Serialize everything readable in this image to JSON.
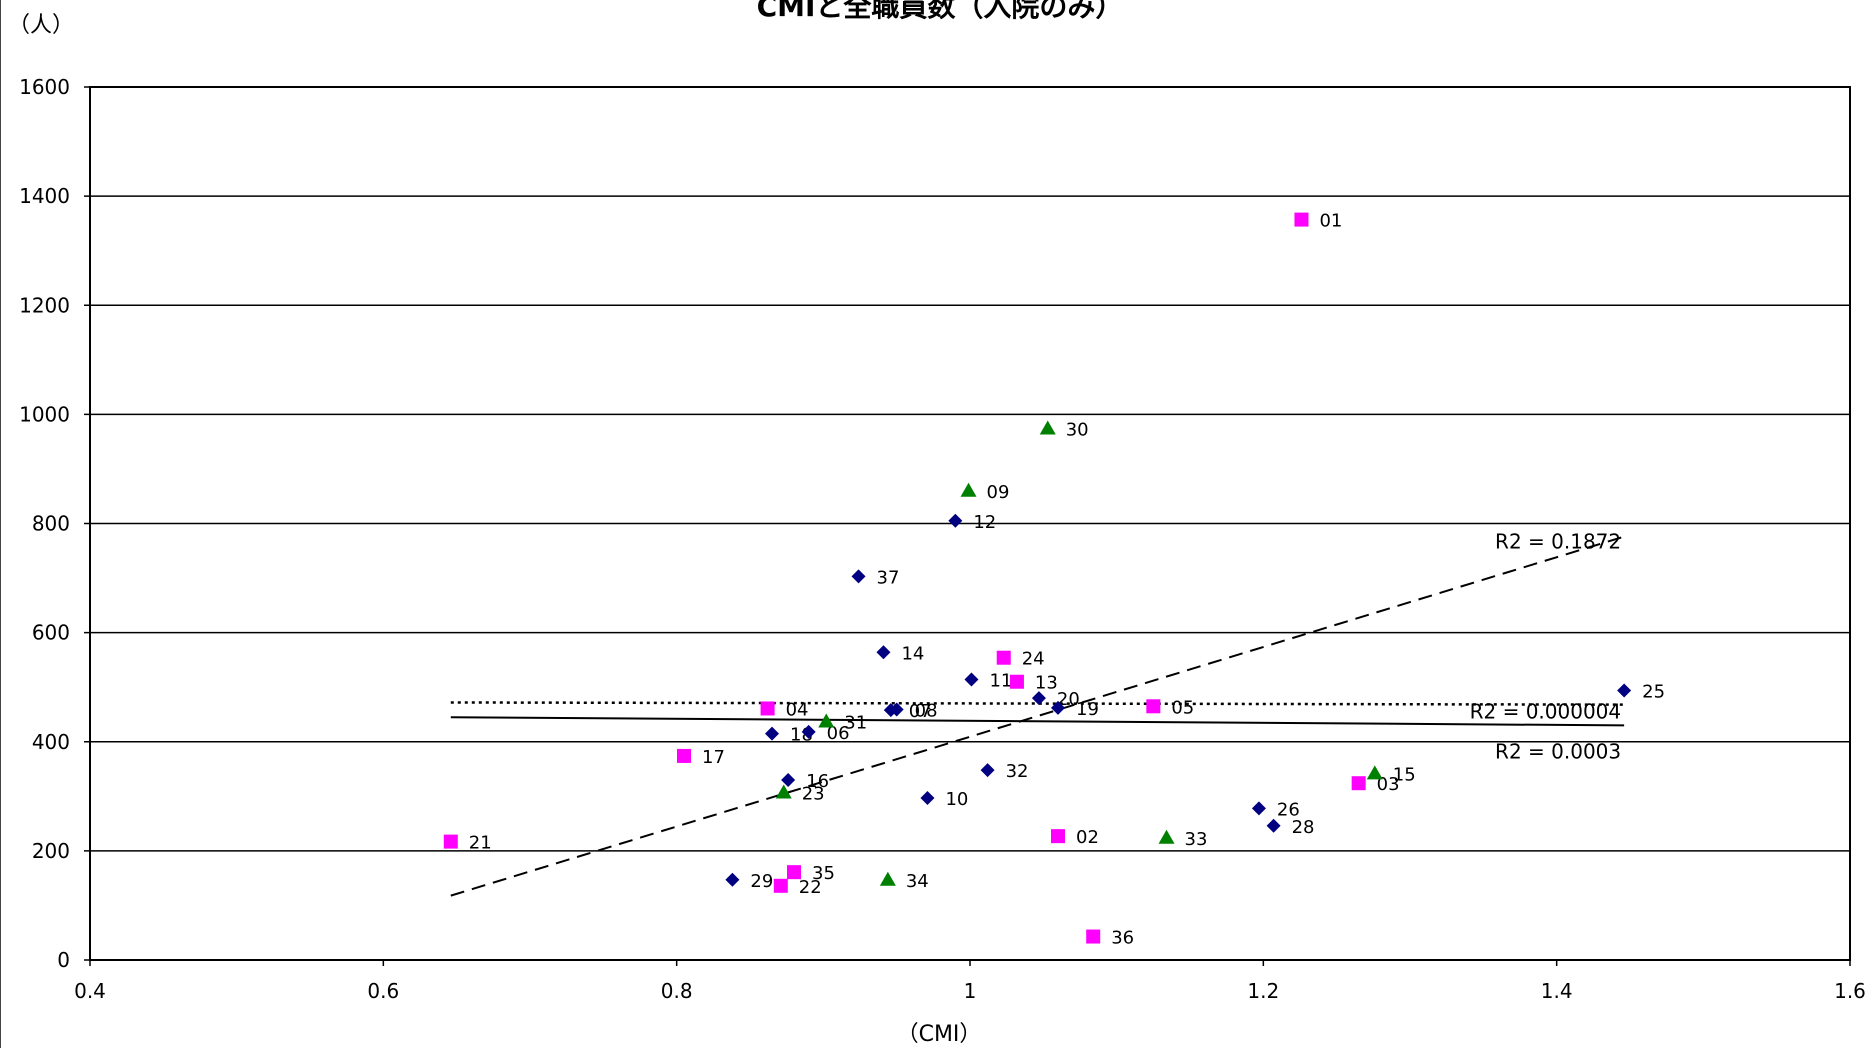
{
  "chart_data": {
    "type": "scatter",
    "title": "CMIと全職員数（入院のみ）",
    "xlabel": "（CMI）",
    "ylabel": "（人）",
    "xlim": [
      0.4,
      1.6
    ],
    "ylim": [
      0,
      1600
    ],
    "xticks": [
      0.4,
      0.6,
      0.8,
      1,
      1.2,
      1.4,
      1.6
    ],
    "xtick_labels": [
      "0.4",
      "0.6",
      "0.8",
      "1",
      "1.2",
      "1.4",
      "1.6"
    ],
    "yticks": [
      0,
      200,
      400,
      600,
      800,
      1000,
      1200,
      1400,
      1600
    ],
    "ytick_labels": [
      "0",
      "200",
      "400",
      "600",
      "800",
      "1000",
      "1200",
      "1400",
      "1600"
    ],
    "grid": "horizontal",
    "series": [
      {
        "marker": "diamond",
        "color": "#000080",
        "points": [
          {
            "x": 0.99,
            "y": 805,
            "label": "12"
          },
          {
            "x": 0.924,
            "y": 703,
            "label": "37"
          },
          {
            "x": 0.941,
            "y": 564,
            "label": "14"
          },
          {
            "x": 1.001,
            "y": 514,
            "label": "11"
          },
          {
            "x": 1.047,
            "y": 480,
            "label": "20"
          },
          {
            "x": 1.06,
            "y": 462,
            "label": "19"
          },
          {
            "x": 0.946,
            "y": 458,
            "label": "07"
          },
          {
            "x": 0.95,
            "y": 459,
            "label": "08"
          },
          {
            "x": 0.865,
            "y": 415,
            "label": "18"
          },
          {
            "x": 0.89,
            "y": 418,
            "label": "06"
          },
          {
            "x": 1.446,
            "y": 494,
            "label": "25"
          },
          {
            "x": 0.876,
            "y": 330,
            "label": "16"
          },
          {
            "x": 1.012,
            "y": 348,
            "label": "32"
          },
          {
            "x": 0.971,
            "y": 297,
            "label": "10"
          },
          {
            "x": 1.197,
            "y": 278,
            "label": "26"
          },
          {
            "x": 1.207,
            "y": 246,
            "label": "28"
          },
          {
            "x": 0.838,
            "y": 147,
            "label": "29"
          }
        ],
        "trendline": {
          "x": [
            0.646,
            1.446
          ],
          "y": [
            445,
            430
          ],
          "style": "solid",
          "r2_label": "R2 = 0.0003"
        }
      },
      {
        "marker": "square",
        "color": "#FF00FF",
        "points": [
          {
            "x": 1.226,
            "y": 1357,
            "label": "01"
          },
          {
            "x": 1.023,
            "y": 554,
            "label": "24"
          },
          {
            "x": 1.032,
            "y": 510,
            "label": "13"
          },
          {
            "x": 0.862,
            "y": 461,
            "label": "04"
          },
          {
            "x": 1.125,
            "y": 465,
            "label": "05"
          },
          {
            "x": 0.805,
            "y": 374,
            "label": "17"
          },
          {
            "x": 1.265,
            "y": 324,
            "label": "03"
          },
          {
            "x": 1.06,
            "y": 227,
            "label": "02"
          },
          {
            "x": 0.646,
            "y": 217,
            "label": "21"
          },
          {
            "x": 0.88,
            "y": 161,
            "label": "35"
          },
          {
            "x": 0.871,
            "y": 136,
            "label": "22"
          },
          {
            "x": 1.084,
            "y": 43,
            "label": "36"
          }
        ],
        "trendline": {
          "x": [
            0.646,
            1.446
          ],
          "y": [
            472,
            468
          ],
          "style": "dotted",
          "r2_label": "R2 = 0.000004"
        }
      },
      {
        "marker": "triangle",
        "color": "#008000",
        "points": [
          {
            "x": 1.053,
            "y": 974,
            "label": "30"
          },
          {
            "x": 0.999,
            "y": 860,
            "label": "09"
          },
          {
            "x": 0.902,
            "y": 437,
            "label": "31"
          },
          {
            "x": 0.873,
            "y": 307,
            "label": "23"
          },
          {
            "x": 1.276,
            "y": 342,
            "label": "15"
          },
          {
            "x": 1.134,
            "y": 224,
            "label": "33"
          },
          {
            "x": 0.944,
            "y": 147,
            "label": "34"
          }
        ],
        "trendline": {
          "x": [
            0.646,
            1.446
          ],
          "y": [
            118,
            776
          ],
          "style": "dashed",
          "r2_label": "R2 = 0.1872"
        }
      }
    ]
  }
}
